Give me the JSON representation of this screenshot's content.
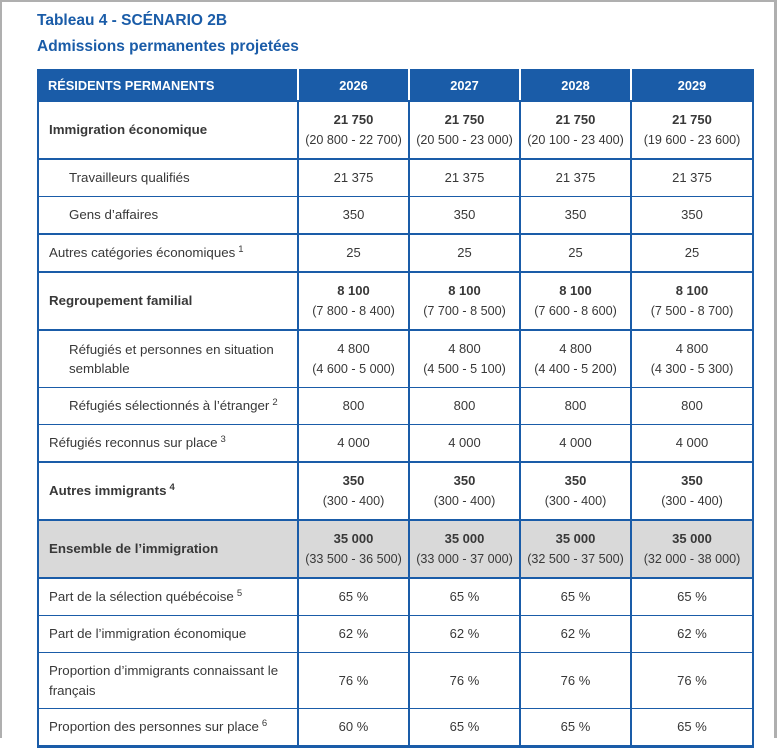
{
  "page": {
    "title_line1": "Tableau 4 - SCÉNARIO 2B",
    "title_line2": "Admissions permanentes projetées"
  },
  "colors": {
    "accent_blue": "#1A5CA8",
    "header_text": "#FFFFFF",
    "total_row_bg": "#D9D9D9",
    "body_text": "#383838",
    "page_frame_gray": "#AFAFAF"
  },
  "table": {
    "header": {
      "label": "RÉSIDENTS PERMANENTS",
      "years": [
        "2026",
        "2027",
        "2028",
        "2029"
      ]
    },
    "rows": [
      {
        "label": "Immigration économique",
        "sup": "",
        "style": "category",
        "border": "thick",
        "values": [
          {
            "main": "21 750",
            "range": "(20 800 - 22 700)"
          },
          {
            "main": "21 750",
            "range": "(20 500 - 23 000)"
          },
          {
            "main": "21 750",
            "range": "(20 100 - 23 400)"
          },
          {
            "main": "21 750",
            "range": "(19 600 - 23 600)"
          }
        ]
      },
      {
        "label": "Travailleurs qualifiés",
        "sup": "",
        "style": "sub",
        "border": "thin",
        "values": [
          {
            "main": "21 375"
          },
          {
            "main": "21 375"
          },
          {
            "main": "21 375"
          },
          {
            "main": "21 375"
          }
        ]
      },
      {
        "label": "Gens d’affaires",
        "sup": "",
        "style": "sub",
        "border": "thick",
        "values": [
          {
            "main": "350"
          },
          {
            "main": "350"
          },
          {
            "main": "350"
          },
          {
            "main": "350"
          }
        ]
      },
      {
        "label": "Autres catégories économiques",
        "sup": "1",
        "style": "plain",
        "border": "thick",
        "values": [
          {
            "main": "25"
          },
          {
            "main": "25"
          },
          {
            "main": "25"
          },
          {
            "main": "25"
          }
        ]
      },
      {
        "label": "Regroupement familial",
        "sup": "",
        "style": "category",
        "border": "thick",
        "values": [
          {
            "main": "8 100",
            "range": "(7 800 - 8 400)"
          },
          {
            "main": "8 100",
            "range": "(7 700 - 8 500)"
          },
          {
            "main": "8 100",
            "range": "(7 600 - 8 600)"
          },
          {
            "main": "8 100",
            "range": "(7 500 - 8 700)"
          }
        ]
      },
      {
        "label": "Réfugiés et personnes en situation semblable",
        "sup": "",
        "style": "sub",
        "border": "thin",
        "values": [
          {
            "main": "4 800",
            "range": "(4 600 - 5 000)"
          },
          {
            "main": "4 800",
            "range": "(4 500 - 5 100)"
          },
          {
            "main": "4 800",
            "range": "(4 400 - 5 200)"
          },
          {
            "main": "4 800",
            "range": "(4 300 - 5 300)"
          }
        ]
      },
      {
        "label": "Réfugiés sélectionnés à l’étranger",
        "sup": "2",
        "style": "sub",
        "border": "thin",
        "values": [
          {
            "main": "800"
          },
          {
            "main": "800"
          },
          {
            "main": "800"
          },
          {
            "main": "800"
          }
        ]
      },
      {
        "label": "Réfugiés reconnus sur place",
        "sup": "3",
        "style": "plain",
        "border": "thick",
        "values": [
          {
            "main": "4 000"
          },
          {
            "main": "4 000"
          },
          {
            "main": "4 000"
          },
          {
            "main": "4 000"
          }
        ]
      },
      {
        "label": "Autres immigrants",
        "sup": "4",
        "style": "category",
        "border": "thick",
        "values": [
          {
            "main": "350",
            "range": "(300 - 400)"
          },
          {
            "main": "350",
            "range": "(300 - 400)"
          },
          {
            "main": "350",
            "range": "(300 - 400)"
          },
          {
            "main": "350",
            "range": "(300 - 400)"
          }
        ]
      },
      {
        "label": "Ensemble de l’immigration",
        "sup": "",
        "style": "total",
        "border": "thick",
        "values": [
          {
            "main": "35 000",
            "range": "(33 500 - 36 500)"
          },
          {
            "main": "35 000",
            "range": "(33 000 - 37 000)"
          },
          {
            "main": "35 000",
            "range": "(32 500 - 37 500)"
          },
          {
            "main": "35 000",
            "range": "(32 000 - 38 000)"
          }
        ]
      },
      {
        "label": "Part de la sélection québécoise",
        "sup": "5",
        "style": "plain",
        "border": "thin",
        "values": [
          {
            "main": "65 %"
          },
          {
            "main": "65 %"
          },
          {
            "main": "65 %"
          },
          {
            "main": "65 %"
          }
        ]
      },
      {
        "label": "Part de l’immigration économique",
        "sup": "",
        "style": "plain",
        "border": "thin",
        "values": [
          {
            "main": "62 %"
          },
          {
            "main": "62 %"
          },
          {
            "main": "62 %"
          },
          {
            "main": "62 %"
          }
        ]
      },
      {
        "label": "Proportion d’immigrants connaissant le français",
        "sup": "",
        "style": "plain",
        "border": "thin",
        "values": [
          {
            "main": "76 %"
          },
          {
            "main": "76 %"
          },
          {
            "main": "76 %"
          },
          {
            "main": "76 %"
          }
        ]
      },
      {
        "label": "Proportion des personnes sur place",
        "sup": "6",
        "style": "plain",
        "border": "thick",
        "values": [
          {
            "main": "60 %"
          },
          {
            "main": "65 %"
          },
          {
            "main": "65 %"
          },
          {
            "main": "65 %"
          }
        ]
      }
    ]
  }
}
